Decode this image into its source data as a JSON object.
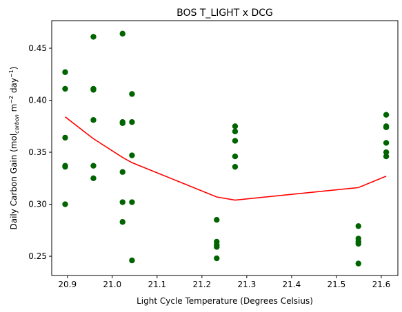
{
  "chart_data": {
    "type": "scatter",
    "title": "BOS T_LIGHT x DCG",
    "xlabel": "Light Cycle Temperature (Degrees Celsius)",
    "ylabel": {
      "prefix": "Daily Carbon Gain (mol",
      "subscript": "carbon",
      "middle": " m",
      "sup1": "−2",
      "middle2": " day",
      "sup2": "−1",
      "suffix": ")"
    },
    "xlim": [
      20.865,
      21.637
    ],
    "ylim": [
      0.2315,
      0.4765
    ],
    "xticks": [
      20.9,
      21.0,
      21.1,
      21.2,
      21.3,
      21.4,
      21.5,
      21.6
    ],
    "xtick_labels": [
      "20.9",
      "21.0",
      "21.1",
      "21.2",
      "21.3",
      "21.4",
      "21.5",
      "21.6"
    ],
    "yticks": [
      0.25,
      0.3,
      0.35,
      0.4,
      0.45
    ],
    "ytick_labels": [
      "0.25",
      "0.30",
      "0.35",
      "0.40",
      "0.45"
    ],
    "grid": false,
    "colors": {
      "points": "#006400",
      "line": "#ff0000"
    },
    "series": [
      {
        "kind": "scatter",
        "x": [
          20.895,
          20.895,
          20.895,
          20.895,
          20.895,
          20.895,
          20.958,
          20.958,
          20.958,
          20.958,
          20.958,
          20.958,
          21.023,
          21.023,
          21.023,
          21.023,
          21.023,
          21.023,
          21.044,
          21.044,
          21.044,
          21.044,
          21.044,
          21.233,
          21.233,
          21.233,
          21.233,
          21.233,
          21.274,
          21.274,
          21.274,
          21.274,
          21.274,
          21.549,
          21.549,
          21.549,
          21.549,
          21.549,
          21.611,
          21.611,
          21.611,
          21.611,
          21.611,
          21.611
        ],
        "y": [
          0.427,
          0.411,
          0.364,
          0.337,
          0.336,
          0.3,
          0.461,
          0.411,
          0.41,
          0.381,
          0.337,
          0.325,
          0.464,
          0.379,
          0.378,
          0.331,
          0.302,
          0.283,
          0.406,
          0.379,
          0.347,
          0.302,
          0.246,
          0.285,
          0.264,
          0.261,
          0.259,
          0.248,
          0.375,
          0.37,
          0.361,
          0.346,
          0.336,
          0.279,
          0.267,
          0.264,
          0.262,
          0.243,
          0.386,
          0.375,
          0.374,
          0.359,
          0.35,
          0.346
        ]
      },
      {
        "kind": "line",
        "x": [
          20.895,
          20.958,
          21.023,
          21.044,
          21.233,
          21.274,
          21.549,
          21.611
        ],
        "y": [
          0.384,
          0.363,
          0.345,
          0.34,
          0.307,
          0.304,
          0.316,
          0.327
        ]
      }
    ]
  }
}
